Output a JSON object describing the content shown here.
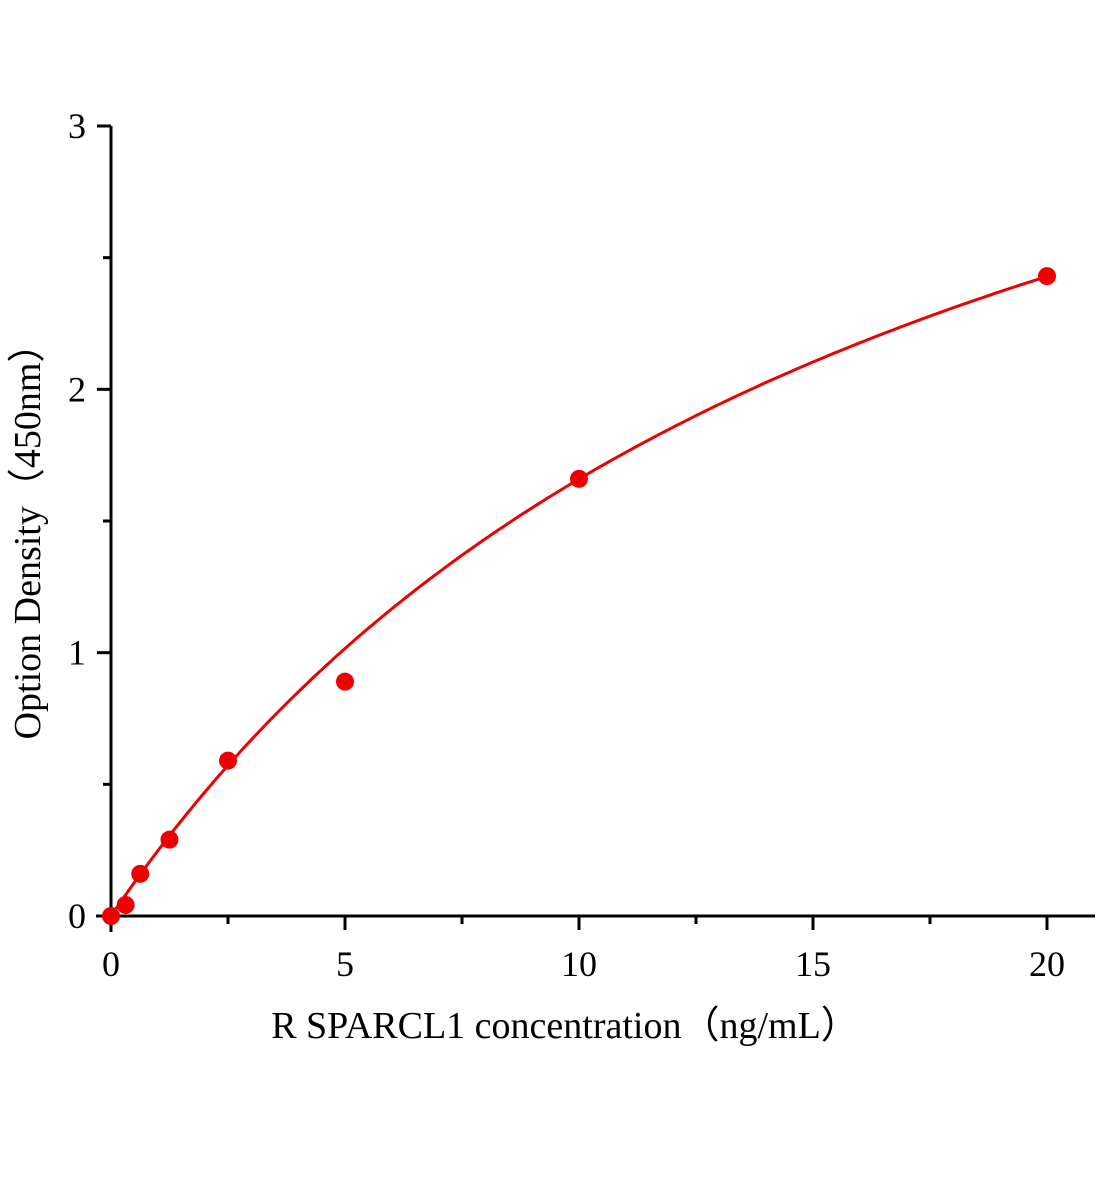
{
  "chart_data": {
    "type": "scatter",
    "title": "",
    "xlabel": "R SPARCL1  concentration（ng/mL）",
    "ylabel": "Option Density（450nm）",
    "xlim": [
      0,
      21
    ],
    "ylim": [
      0,
      3
    ],
    "x_ticks": [
      "0",
      "5",
      "10",
      "15",
      "20"
    ],
    "y_ticks": [
      "0",
      "1",
      "2",
      "3"
    ],
    "grid": false,
    "color": "#ee0000",
    "series": [
      {
        "x": [
          0,
          0.3125,
          0.625,
          1.25,
          2.5,
          5,
          10,
          20
        ],
        "y": [
          0.0,
          0.042,
          0.16,
          0.29,
          0.59,
          0.89,
          1.66,
          2.43
        ],
        "fit_line": true
      }
    ]
  }
}
